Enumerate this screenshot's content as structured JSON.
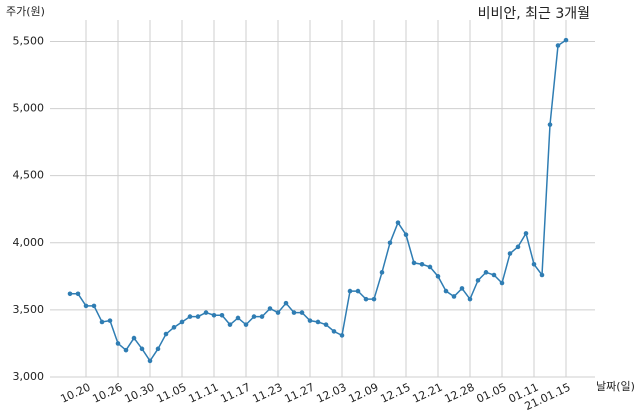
{
  "chart_data": {
    "type": "line",
    "title": "비비안, 최근 3개월",
    "y_label": "주가(원)",
    "x_label": "날짜(일)",
    "categories": [
      null,
      null,
      "10.20",
      null,
      null,
      null,
      "10.26",
      null,
      null,
      null,
      "10.30",
      null,
      null,
      null,
      "11.05",
      null,
      null,
      null,
      "11.11",
      null,
      null,
      null,
      "11.17",
      null,
      null,
      null,
      "11.23",
      null,
      null,
      null,
      "11.27",
      null,
      null,
      null,
      "12.03",
      null,
      null,
      null,
      "12.09",
      null,
      null,
      null,
      "12.15",
      null,
      null,
      null,
      "12.21",
      null,
      null,
      null,
      "12.28",
      null,
      null,
      null,
      "01.05",
      null,
      null,
      null,
      "01.11",
      null,
      null,
      null,
      "21.01.15"
    ],
    "series": [
      {
        "name": "주가",
        "color": "#2f7db3",
        "values": [
          3620,
          3620,
          3530,
          3530,
          3410,
          3420,
          3250,
          3200,
          3290,
          3210,
          3120,
          3210,
          3320,
          3370,
          3410,
          3450,
          3450,
          3480,
          3460,
          3460,
          3390,
          3440,
          3390,
          3450,
          3450,
          3510,
          3480,
          3550,
          3480,
          3480,
          3420,
          3410,
          3390,
          3340,
          3310,
          3640,
          3640,
          3580,
          3580,
          3780,
          4000,
          4150,
          4060,
          3850,
          3840,
          3820,
          3750,
          3640,
          3600,
          3660,
          3580,
          3720,
          3780,
          3760,
          3700,
          3920,
          3970,
          4070,
          3840,
          3760,
          4880,
          5470,
          5510
        ]
      }
    ],
    "ylim": [
      3000,
      5660
    ],
    "yticks": [
      {
        "value": 3000,
        "label": "3,000"
      },
      {
        "value": 3500,
        "label": "3,500"
      },
      {
        "value": 4000,
        "label": "4,000"
      },
      {
        "value": 4500,
        "label": "4,500"
      },
      {
        "value": 5000,
        "label": "5,000"
      },
      {
        "value": 5500,
        "label": "5,500"
      }
    ],
    "grid": true
  }
}
